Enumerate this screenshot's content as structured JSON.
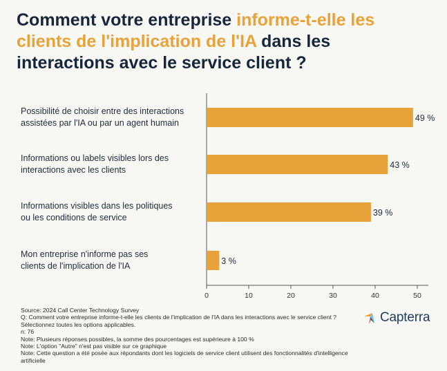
{
  "title": {
    "part1": "Comment votre entreprise ",
    "highlight": "informe-t-elle les clients de l'implication de l'IA",
    "part2": " dans les interactions avec le service client ?"
  },
  "chart_data": {
    "type": "bar",
    "orientation": "horizontal",
    "categories": [
      "Possibilité de choisir entre des interactions assistées par l'IA ou par un agent humain",
      "Informations ou labels visibles lors des interactions avec les clients",
      "Informations visibles dans les politiques ou les conditions de service",
      "Mon entreprise n'informe pas ses clients de l'implication de l'IA"
    ],
    "category_lines": [
      [
        "Possibilité de choisir entre des interactions",
        "assistées par l'IA ou par un agent humain"
      ],
      [
        "Informations ou labels visibles lors des",
        "interactions avec les clients"
      ],
      [
        "Informations visibles dans les politiques",
        "ou les conditions de service"
      ],
      [
        "Mon entreprise n'informe pas ses",
        "clients de l'implication de l'IA"
      ]
    ],
    "values": [
      49,
      43,
      39,
      3
    ],
    "value_labels": [
      "49 %",
      "43 %",
      "39 %",
      "3 %"
    ],
    "xlim": [
      0,
      50
    ],
    "x_ticks": [
      0,
      10,
      20,
      30,
      40,
      50
    ],
    "grid": false,
    "bar_color": "#e8a23a"
  },
  "footer": {
    "source": "Source: 2024 Call Center Technology Survey",
    "question": "Q: Comment votre entreprise informe-t-elle les clients de l'implication de l'IA dans les interactions avec le service client ? Sélectionnez toutes les options applicables.",
    "n": "n: 76",
    "note1": "Note: Plusieurs réponses possibles, la somme des pourcentages est supérieure à 100 %",
    "note2": "Note: L'option \"Autre\" n'est pas visible sur ce graphique",
    "note3": "Note: Cette question a été posée aux répondants dont les logiciels de service client utilisent des fonctionnalités d'intelligence artificielle"
  },
  "logo": {
    "text": "Capterra",
    "icon": "capterra-arrow-icon",
    "colors": [
      "#ff9d28",
      "#68c5ed",
      "#044d80",
      "#e54747"
    ]
  },
  "colors": {
    "accent": "#e8a23a",
    "title": "#17263a",
    "background": "#f7f8f3"
  }
}
